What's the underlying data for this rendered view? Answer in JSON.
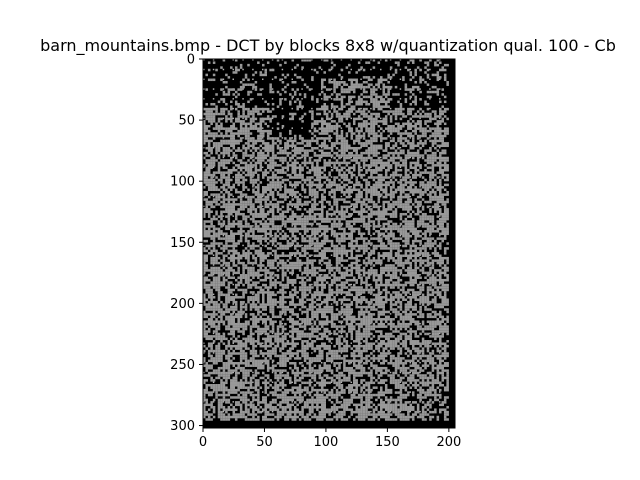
{
  "chart_data": {
    "type": "heatmap",
    "title": "barn_mountains.bmp - DCT by blocks 8x8  w/quantization qual. 100 - Cb",
    "xlabel": "",
    "ylabel": "",
    "colormap": "gray",
    "xlim": [
      0,
      205
    ],
    "ylim": [
      302,
      0
    ],
    "x_ticks": [
      0,
      50,
      100,
      150,
      200
    ],
    "y_ticks": [
      0,
      50,
      100,
      150,
      200,
      250,
      300
    ],
    "x_tick_labels": [
      "0",
      "50",
      "100",
      "150",
      "200"
    ],
    "y_tick_labels": [
      "0",
      "50",
      "100",
      "150",
      "200",
      "250",
      "300"
    ],
    "block_size": 8,
    "image_width": 205,
    "image_height": 302,
    "grid": false
  },
  "colors": {
    "dark": "#000000",
    "mid": "#999999",
    "light": "#b4b4b4"
  }
}
